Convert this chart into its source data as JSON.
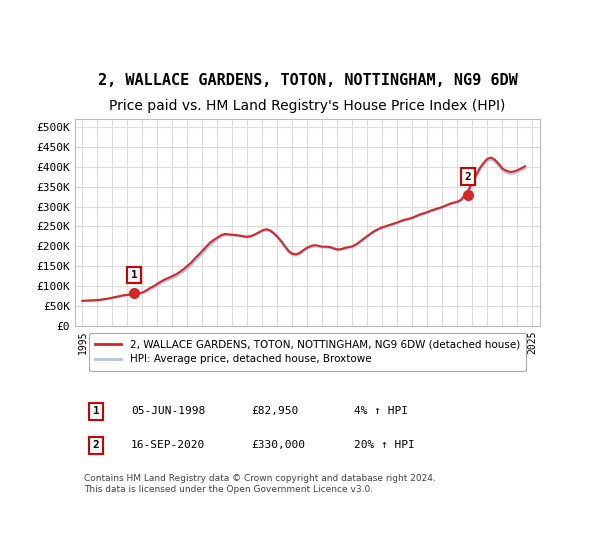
{
  "title": "2, WALLACE GARDENS, TOTON, NOTTINGHAM, NG9 6DW",
  "subtitle": "Price paid vs. HM Land Registry's House Price Index (HPI)",
  "title_fontsize": 11,
  "subtitle_fontsize": 10,
  "ylabel_ticks": [
    "£0",
    "£50K",
    "£100K",
    "£150K",
    "£200K",
    "£250K",
    "£300K",
    "£350K",
    "£400K",
    "£450K",
    "£500K"
  ],
  "ytick_values": [
    0,
    50000,
    100000,
    150000,
    200000,
    250000,
    300000,
    350000,
    400000,
    450000,
    500000
  ],
  "ylim": [
    0,
    520000
  ],
  "xlim_start": 1994.5,
  "xlim_end": 2025.5,
  "xtick_years": [
    1995,
    1996,
    1997,
    1998,
    1999,
    2000,
    2001,
    2002,
    2003,
    2004,
    2005,
    2006,
    2007,
    2008,
    2009,
    2010,
    2011,
    2012,
    2013,
    2014,
    2015,
    2016,
    2017,
    2018,
    2019,
    2020,
    2021,
    2022,
    2023,
    2024,
    2025
  ],
  "hpi_color": "#aec6e8",
  "price_color": "#d62728",
  "grid_color": "#dddddd",
  "bg_color": "#ffffff",
  "sale1_x": 1998.44,
  "sale1_y": 82950,
  "sale2_x": 2020.71,
  "sale2_y": 330000,
  "sale1_label": "1",
  "sale2_label": "2",
  "legend_line1": "2, WALLACE GARDENS, TOTON, NOTTINGHAM, NG9 6DW (detached house)",
  "legend_line2": "HPI: Average price, detached house, Broxtowe",
  "table_row1": [
    "1",
    "05-JUN-1998",
    "£82,950",
    "4% ↑ HPI"
  ],
  "table_row2": [
    "2",
    "16-SEP-2020",
    "£330,000",
    "20% ↑ HPI"
  ],
  "footer": "Contains HM Land Registry data © Crown copyright and database right 2024.\nThis data is licensed under the Open Government Licence v3.0.",
  "hpi_data_x": [
    1995.0,
    1995.25,
    1995.5,
    1995.75,
    1996.0,
    1996.25,
    1996.5,
    1996.75,
    1997.0,
    1997.25,
    1997.5,
    1997.75,
    1998.0,
    1998.25,
    1998.5,
    1998.75,
    1999.0,
    1999.25,
    1999.5,
    1999.75,
    2000.0,
    2000.25,
    2000.5,
    2000.75,
    2001.0,
    2001.25,
    2001.5,
    2001.75,
    2002.0,
    2002.25,
    2002.5,
    2002.75,
    2003.0,
    2003.25,
    2003.5,
    2003.75,
    2004.0,
    2004.25,
    2004.5,
    2004.75,
    2005.0,
    2005.25,
    2005.5,
    2005.75,
    2006.0,
    2006.25,
    2006.5,
    2006.75,
    2007.0,
    2007.25,
    2007.5,
    2007.75,
    2008.0,
    2008.25,
    2008.5,
    2008.75,
    2009.0,
    2009.25,
    2009.5,
    2009.75,
    2010.0,
    2010.25,
    2010.5,
    2010.75,
    2011.0,
    2011.25,
    2011.5,
    2011.75,
    2012.0,
    2012.25,
    2012.5,
    2012.75,
    2013.0,
    2013.25,
    2013.5,
    2013.75,
    2014.0,
    2014.25,
    2014.5,
    2014.75,
    2015.0,
    2015.25,
    2015.5,
    2015.75,
    2016.0,
    2016.25,
    2016.5,
    2016.75,
    2017.0,
    2017.25,
    2017.5,
    2017.75,
    2018.0,
    2018.25,
    2018.5,
    2018.75,
    2019.0,
    2019.25,
    2019.5,
    2019.75,
    2020.0,
    2020.25,
    2020.5,
    2020.75,
    2021.0,
    2021.25,
    2021.5,
    2021.75,
    2022.0,
    2022.25,
    2022.5,
    2022.75,
    2023.0,
    2023.25,
    2023.5,
    2023.75,
    2024.0,
    2024.25,
    2024.5
  ],
  "hpi_data_y": [
    62000,
    62500,
    63000,
    63500,
    64000,
    65000,
    66500,
    68000,
    70000,
    72000,
    74000,
    76000,
    77000,
    78000,
    79000,
    80000,
    82000,
    86000,
    91000,
    96000,
    101000,
    107000,
    112000,
    116000,
    120000,
    124000,
    130000,
    137000,
    144000,
    152000,
    163000,
    172000,
    182000,
    192000,
    202000,
    210000,
    218000,
    225000,
    228000,
    228000,
    227000,
    226000,
    225000,
    223000,
    222000,
    224000,
    228000,
    233000,
    238000,
    241000,
    238000,
    231000,
    222000,
    210000,
    197000,
    185000,
    178000,
    177000,
    181000,
    188000,
    194000,
    198000,
    200000,
    199000,
    197000,
    197000,
    196000,
    193000,
    190000,
    191000,
    194000,
    196000,
    198000,
    203000,
    210000,
    217000,
    224000,
    231000,
    237000,
    242000,
    246000,
    249000,
    252000,
    255000,
    258000,
    262000,
    265000,
    267000,
    270000,
    274000,
    278000,
    281000,
    284000,
    288000,
    291000,
    294000,
    297000,
    301000,
    305000,
    308000,
    310000,
    315000,
    325000,
    338000,
    355000,
    375000,
    392000,
    405000,
    415000,
    418000,
    412000,
    402000,
    390000,
    385000,
    382000,
    383000,
    386000,
    391000,
    396000
  ],
  "price_data_x": [
    1995.0,
    1995.25,
    1995.5,
    1995.75,
    1996.0,
    1996.25,
    1996.5,
    1996.75,
    1997.0,
    1997.25,
    1997.5,
    1997.75,
    1998.0,
    1998.25,
    1998.5,
    1998.75,
    1999.0,
    1999.25,
    1999.5,
    1999.75,
    2000.0,
    2000.25,
    2000.5,
    2000.75,
    2001.0,
    2001.25,
    2001.5,
    2001.75,
    2002.0,
    2002.25,
    2002.5,
    2002.75,
    2003.0,
    2003.25,
    2003.5,
    2003.75,
    2004.0,
    2004.25,
    2004.5,
    2004.75,
    2005.0,
    2005.25,
    2005.5,
    2005.75,
    2006.0,
    2006.25,
    2006.5,
    2006.75,
    2007.0,
    2007.25,
    2007.5,
    2007.75,
    2008.0,
    2008.25,
    2008.5,
    2008.75,
    2009.0,
    2009.25,
    2009.5,
    2009.75,
    2010.0,
    2010.25,
    2010.5,
    2010.75,
    2011.0,
    2011.25,
    2011.5,
    2011.75,
    2012.0,
    2012.25,
    2012.5,
    2012.75,
    2013.0,
    2013.25,
    2013.5,
    2013.75,
    2014.0,
    2014.25,
    2014.5,
    2014.75,
    2015.0,
    2015.25,
    2015.5,
    2015.75,
    2016.0,
    2016.25,
    2016.5,
    2016.75,
    2017.0,
    2017.25,
    2017.5,
    2017.75,
    2018.0,
    2018.25,
    2018.5,
    2018.75,
    2019.0,
    2019.25,
    2019.5,
    2019.75,
    2020.0,
    2020.25,
    2020.5,
    2020.75,
    2021.0,
    2021.25,
    2021.5,
    2021.75,
    2022.0,
    2022.25,
    2022.5,
    2022.75,
    2023.0,
    2023.25,
    2023.5,
    2023.75,
    2024.0,
    2024.25,
    2024.5
  ],
  "price_data_y": [
    63000,
    63500,
    64000,
    64500,
    65000,
    66000,
    67500,
    69000,
    71000,
    73000,
    75000,
    77000,
    78000,
    79000,
    82950,
    82000,
    84000,
    89000,
    95000,
    100000,
    106000,
    112000,
    117000,
    121000,
    125000,
    130000,
    136000,
    143000,
    151000,
    159000,
    170000,
    179000,
    189000,
    199000,
    209000,
    216000,
    222000,
    228000,
    231000,
    230000,
    229000,
    228000,
    227000,
    225000,
    224000,
    226000,
    230000,
    235000,
    240000,
    243000,
    240000,
    233000,
    224000,
    213000,
    200000,
    188000,
    181000,
    180000,
    184000,
    191000,
    197000,
    201000,
    203000,
    201000,
    199000,
    199000,
    198000,
    195000,
    192000,
    193000,
    196000,
    198000,
    200000,
    205000,
    212000,
    219000,
    226000,
    233000,
    239000,
    244000,
    248000,
    251000,
    254000,
    257000,
    260000,
    264000,
    267000,
    269000,
    272000,
    276000,
    280000,
    283000,
    286000,
    290000,
    293000,
    296000,
    299000,
    303000,
    307000,
    310000,
    312000,
    317000,
    330000,
    343000,
    360000,
    380000,
    397000,
    410000,
    420000,
    423000,
    417000,
    407000,
    395000,
    390000,
    387000,
    388000,
    391000,
    396000,
    401000
  ]
}
